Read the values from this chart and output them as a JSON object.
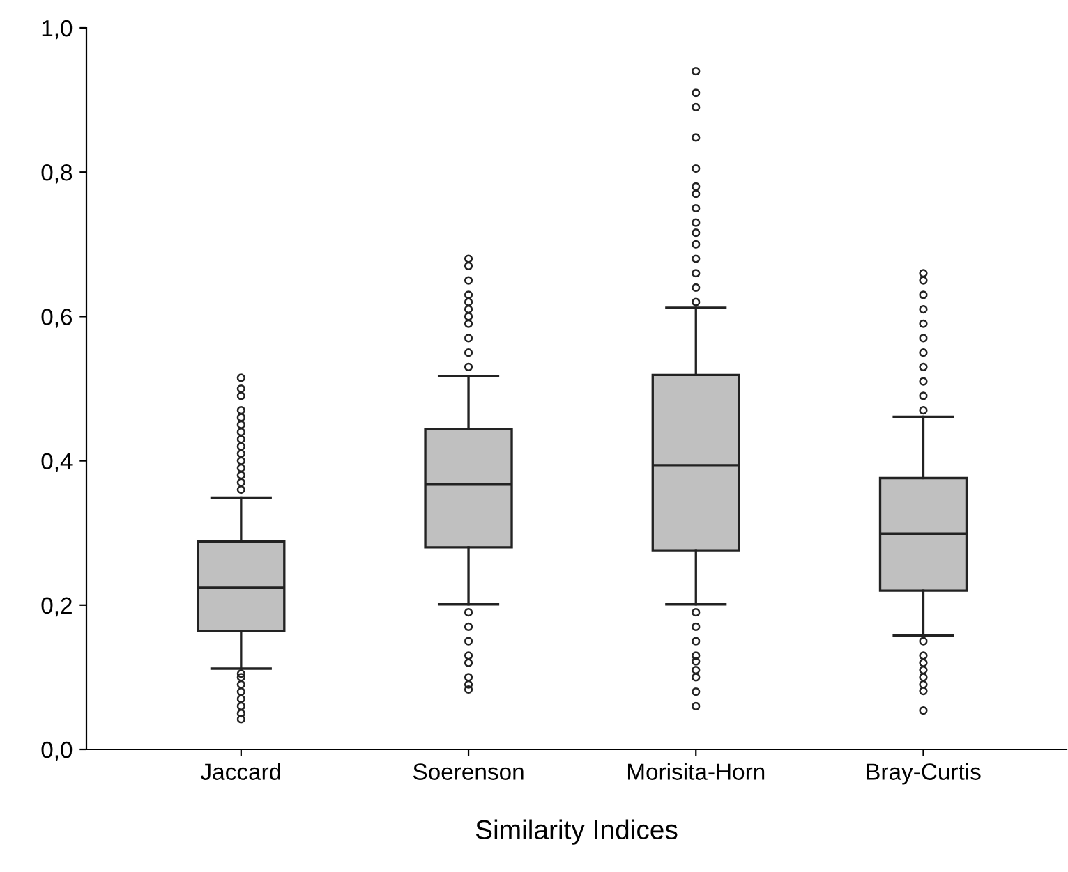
{
  "chart_data": {
    "type": "box",
    "xlabel": "Similarity Indices",
    "categories": [
      "Jaccard",
      "Soerenson",
      "Morisita-Horn",
      "Bray-Curtis"
    ],
    "color": "#c0c0c0",
    "boxes": [
      {
        "low": 0.112,
        "q1": 0.164,
        "median": 0.224,
        "q3": 0.288,
        "high": 0.349,
        "outliers": [
          0.36,
          0.37,
          0.38,
          0.39,
          0.4,
          0.41,
          0.42,
          0.43,
          0.44,
          0.45,
          0.46,
          0.47,
          0.49,
          0.5,
          0.515,
          0.105,
          0.1,
          0.09,
          0.08,
          0.07,
          0.06,
          0.05,
          0.042
        ]
      },
      {
        "low": 0.201,
        "q1": 0.28,
        "median": 0.367,
        "q3": 0.444,
        "high": 0.517,
        "outliers": [
          0.53,
          0.55,
          0.57,
          0.59,
          0.6,
          0.61,
          0.62,
          0.63,
          0.65,
          0.67,
          0.68,
          0.19,
          0.17,
          0.15,
          0.13,
          0.12,
          0.1,
          0.09,
          0.083
        ]
      },
      {
        "low": 0.201,
        "q1": 0.276,
        "median": 0.394,
        "q3": 0.519,
        "high": 0.612,
        "outliers": [
          0.62,
          0.64,
          0.66,
          0.68,
          0.7,
          0.716,
          0.73,
          0.75,
          0.77,
          0.78,
          0.805,
          0.848,
          0.89,
          0.91,
          0.94,
          0.19,
          0.17,
          0.15,
          0.13,
          0.122,
          0.11,
          0.1,
          0.08,
          0.06
        ]
      },
      {
        "low": 0.158,
        "q1": 0.22,
        "median": 0.299,
        "q3": 0.376,
        "high": 0.461,
        "outliers": [
          0.47,
          0.49,
          0.51,
          0.53,
          0.55,
          0.57,
          0.59,
          0.61,
          0.63,
          0.65,
          0.66,
          0.15,
          0.13,
          0.12,
          0.11,
          0.1,
          0.09,
          0.081,
          0.054
        ]
      }
    ],
    "ylim": [
      0,
      1.0
    ],
    "yticks": [
      {
        "value": 0,
        "label": "0,0"
      },
      {
        "value": 0.2,
        "label": "0,2"
      },
      {
        "value": 0.4,
        "label": "0,4"
      },
      {
        "value": 0.6,
        "label": "0,6"
      },
      {
        "value": 0.8,
        "label": "0,8"
      },
      {
        "value": 1.0,
        "label": "1,0"
      }
    ],
    "grid": false,
    "legend": false,
    "marker": "circle"
  }
}
